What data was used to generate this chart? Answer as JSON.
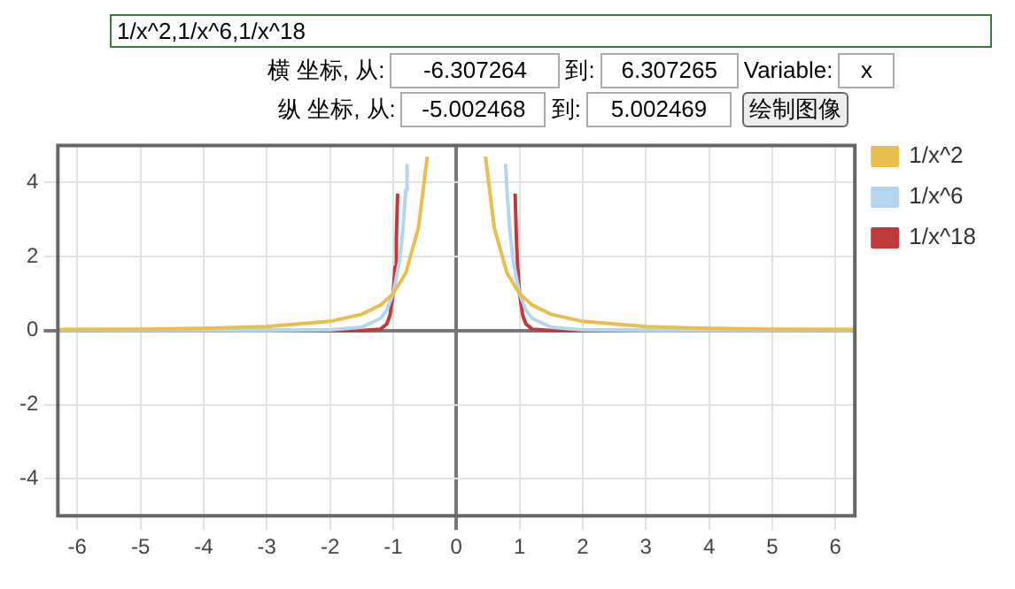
{
  "chart_data": {
    "type": "line",
    "annotations": [
      "1/x^2,1/x^6,1/x^18",
      "横 坐标, 从:",
      "到:",
      "Variable:",
      "x",
      "纵 坐标, 从:",
      "到:",
      "绘制图像",
      "-6.307264",
      "6.307265",
      "-5.002468",
      "5.002469"
    ],
    "series": [
      {
        "name": "1/x^2",
        "color": "#e8bf4f",
        "x": [
          -6.3,
          -5,
          -4,
          -3,
          -2,
          -1.5,
          -1.2,
          -1,
          -0.8,
          -0.6,
          -0.46,
          0,
          0.46,
          0.6,
          0.8,
          1,
          1.2,
          1.5,
          2,
          3,
          4,
          5,
          6.3
        ],
        "values": [
          0.03,
          0.04,
          0.06,
          0.11,
          0.25,
          0.44,
          0.69,
          1,
          1.56,
          2.78,
          4.7,
          null,
          4.7,
          2.78,
          1.56,
          1,
          0.69,
          0.44,
          0.25,
          0.11,
          0.06,
          0.04,
          0.03
        ]
      },
      {
        "name": "1/x^6",
        "color": "#b3d5f0",
        "x": [
          -6.3,
          -3,
          -2,
          -1.5,
          -1.2,
          -1.1,
          -1,
          -0.9,
          -0.85,
          -0.8,
          -0.78,
          0,
          0.78,
          0.8,
          0.85,
          0.9,
          1,
          1.1,
          1.2,
          1.5,
          2,
          3,
          6.3
        ],
        "values": [
          0,
          0,
          0.02,
          0.09,
          0.33,
          0.56,
          1,
          1.88,
          2.65,
          3.8,
          4.5,
          null,
          4.5,
          3.8,
          2.65,
          1.88,
          1,
          0.56,
          0.33,
          0.09,
          0.02,
          0,
          0
        ]
      },
      {
        "name": "1/x^18",
        "color": "#c0393b",
        "x": [
          -6.3,
          -1.5,
          -1.2,
          -1.1,
          -1.05,
          -1,
          -0.97,
          -0.95,
          -0.93,
          0,
          0.93,
          0.95,
          0.97,
          1,
          1.05,
          1.1,
          1.2,
          1.5,
          6.3
        ],
        "values": [
          0,
          0,
          0.04,
          0.18,
          0.42,
          1,
          1.73,
          2.5,
          3.7,
          null,
          3.7,
          2.5,
          1.73,
          1,
          0.42,
          0.18,
          0.04,
          0,
          0
        ]
      }
    ],
    "xlim": [
      -6.307264,
      6.307265
    ],
    "xticks": [
      -6,
      -5,
      -4,
      -3,
      -2,
      -1,
      0,
      1,
      2,
      3,
      4,
      5,
      6
    ],
    "ylim": [
      -5.002468,
      5.002469
    ],
    "yticks": [
      -4,
      -2,
      0,
      2,
      4
    ],
    "grid": true,
    "legend": "top right",
    "marker": "none",
    "line_style": "solid"
  }
}
